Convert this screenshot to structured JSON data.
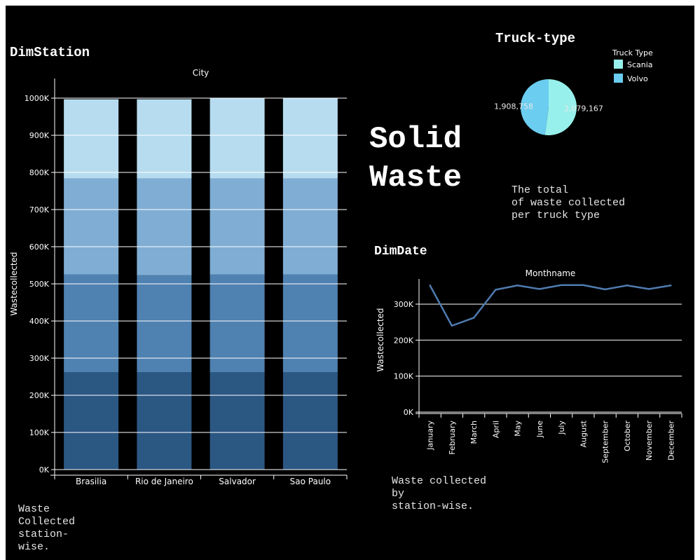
{
  "dashboard": {
    "main_title": "Solid\nWaste",
    "colors": {
      "background": "#000000",
      "text": "#ffffff"
    }
  },
  "station_panel": {
    "title": "DimStation",
    "note": "Waste\nCollected\nstation-\nwise."
  },
  "truck_panel": {
    "title": "Truck-type",
    "note": "The total\nof waste collected\nper truck type"
  },
  "date_panel": {
    "title": "DimDate",
    "note": "Waste collected\nby\nstation-wise."
  },
  "chart_data": [
    {
      "id": "station",
      "type": "bar",
      "stacked": true,
      "title": "City",
      "xlabel": "",
      "ylabel": "Wastecollected",
      "categories": [
        "Brasilia",
        "Rio de Janeiro",
        "Salvador",
        "Sao Paulo"
      ],
      "series": [
        {
          "color": "#2b5783",
          "values": [
            262000,
            262000,
            262000,
            262000
          ]
        },
        {
          "color": "#4f81b1",
          "values": [
            263000,
            261000,
            263000,
            263000
          ]
        },
        {
          "color": "#7fadd4",
          "values": [
            259000,
            261000,
            259000,
            259000
          ]
        },
        {
          "color": "#b7dcef",
          "values": [
            213000,
            213000,
            216000,
            216000
          ]
        }
      ],
      "ylim": [
        0,
        1000000
      ],
      "yticks": [
        0,
        100000,
        200000,
        300000,
        400000,
        500000,
        600000,
        700000,
        800000,
        900000,
        1000000
      ],
      "yticklabels": [
        "0K",
        "100K",
        "200K",
        "300K",
        "400K",
        "500K",
        "600K",
        "700K",
        "800K",
        "900K",
        "1000K"
      ],
      "grid": true
    },
    {
      "id": "truck",
      "type": "pie",
      "title": "",
      "legend_title": "Truck Type",
      "legend_position": "top-right",
      "labels": [
        "Scania",
        "Volvo"
      ],
      "values": [
        2079167,
        1908758
      ],
      "value_labels": [
        "2,079,167",
        "1,908,758"
      ],
      "colors": [
        "#97f0eb",
        "#6bcdf0"
      ]
    },
    {
      "id": "date",
      "type": "line",
      "title": "Monthname",
      "xlabel": "",
      "ylabel": "Wastecollected",
      "categories": [
        "January",
        "February",
        "March",
        "April",
        "May",
        "June",
        "July",
        "August",
        "September",
        "October",
        "November",
        "December"
      ],
      "series": [
        {
          "color": "#4f7bb0",
          "values": [
            352000,
            240000,
            262000,
            340000,
            352000,
            342000,
            353000,
            353000,
            341000,
            352000,
            342000,
            352000
          ]
        }
      ],
      "ylim": [
        0,
        370000
      ],
      "yticks": [
        0,
        100000,
        200000,
        300000
      ],
      "yticklabels": [
        "0K",
        "100K",
        "200K",
        "300K"
      ],
      "grid": true
    }
  ]
}
